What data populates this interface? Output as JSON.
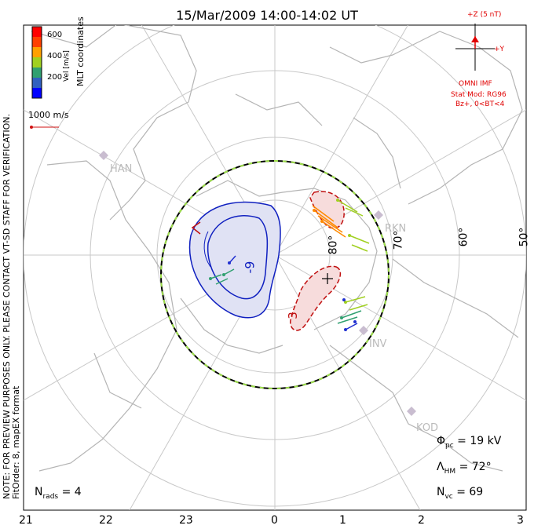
{
  "title": "15/Mar/2009  14:00-14:02  UT",
  "legend": {
    "title": "Vel [m/s]",
    "coords": "MLT coordinates",
    "ticks": [
      "600",
      "400",
      "200"
    ],
    "colors": [
      "#0000ff",
      "#3060c0",
      "#30a070",
      "#a0d020",
      "#ffa000",
      "#ff4000",
      "#ff0000"
    ],
    "vector_scale": "1000 m/s"
  },
  "imf": {
    "z_label": "+Z (5 nT)",
    "y_label": "+Y",
    "source": "OMNI IMF",
    "model": "Stat Mod: RG96",
    "condition": "Bz+, 0<BT<4"
  },
  "side_notes": {
    "warning": "NOTE: FOR PREVIEW PURPOSES ONLY. PLEASE CONTACT VT-SD STAFF FOR VERIFICATION.",
    "fit": "FitOrder: 8, mapEX format"
  },
  "stations": [
    "HAN",
    "RKN",
    "INV",
    "KOD"
  ],
  "latitude_labels": [
    "80°",
    "70°",
    "60°",
    "50°"
  ],
  "contour_labels": {
    "negative": "-9",
    "positive": "3"
  },
  "stats": {
    "phi_symbol": "Φ",
    "phi_sub": "pc",
    "phi_value": "= 19 kV",
    "lambda_symbol": "Λ",
    "lambda_sub": "HM",
    "lambda_value": "= 72°",
    "nvc_symbol": "N",
    "nvc_sub": "vc",
    "nvc_value": "= 69"
  },
  "nrads": {
    "symbol": "N",
    "sub": "rads",
    "value": "= 4"
  },
  "mlt_ticks": [
    "21",
    "22",
    "23",
    "0",
    "1",
    "2",
    "3"
  ]
}
